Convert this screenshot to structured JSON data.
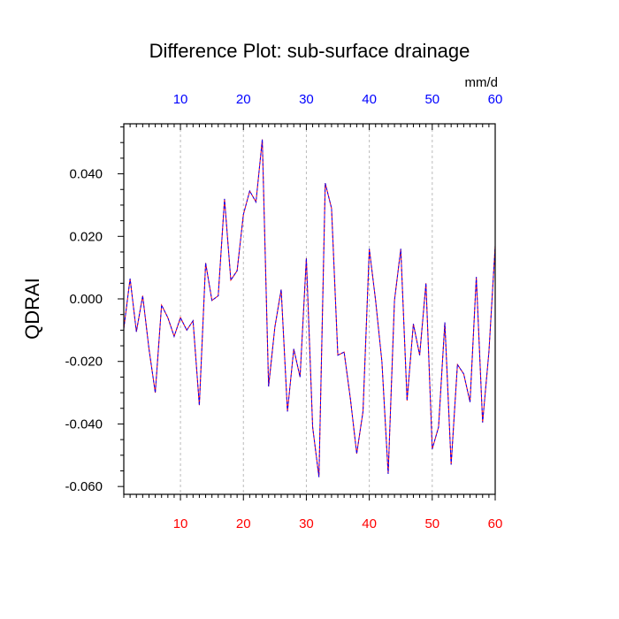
{
  "chart_data": {
    "type": "line",
    "title": "Difference Plot: sub-surface drainage",
    "ylabel": "QDRAI",
    "units": "mm/d",
    "xlim": [
      1,
      60
    ],
    "ylim": [
      -0.0625,
      0.056
    ],
    "x_ticks": [
      10,
      20,
      30,
      40,
      50,
      60
    ],
    "x_tick_labels": [
      "10",
      "20",
      "30",
      "40",
      "50",
      "60"
    ],
    "top_x_tick_labels": [
      "10",
      "20",
      "30",
      "40",
      "50",
      "60"
    ],
    "y_ticks": [
      -0.06,
      -0.04,
      -0.02,
      0.0,
      0.02,
      0.04
    ],
    "y_tick_labels": [
      "-0.060",
      "-0.040",
      "-0.020",
      "0.000",
      "0.020",
      "0.040"
    ],
    "grid": "vertical dashed at major x ticks",
    "colors": {
      "bottom_axis_labels": "#ff0000",
      "top_axis_labels": "#0000ff",
      "series_red": "#ff0000",
      "series_blue": "#0000ff"
    },
    "series": [
      {
        "color": "#ff0000",
        "values": [
          -0.0095,
          0.0065,
          -0.0105,
          0.001,
          -0.016,
          -0.03,
          -0.002,
          -0.006,
          -0.012,
          -0.006,
          -0.01,
          -0.007,
          -0.034,
          0.0115,
          -0.0005,
          0.001,
          0.032,
          0.006,
          0.009,
          0.027,
          0.0345,
          0.031,
          0.051,
          -0.028,
          -0.009,
          0.003,
          -0.036,
          -0.016,
          -0.025,
          0.013,
          -0.041,
          -0.057,
          0.037,
          0.029,
          -0.018,
          -0.017,
          -0.032,
          -0.0495,
          -0.036,
          0.016,
          -0.0005,
          -0.02,
          -0.056,
          -0.0005,
          0.016,
          -0.0325,
          -0.008,
          -0.018,
          0.005,
          -0.048,
          -0.041,
          -0.0075,
          -0.053,
          -0.021,
          -0.024,
          -0.033,
          0.007,
          -0.0395,
          -0.017,
          0.017
        ]
      },
      {
        "color": "#0000ff",
        "values": [
          -0.0095,
          0.0065,
          -0.0105,
          0.001,
          -0.016,
          -0.03,
          -0.002,
          -0.006,
          -0.012,
          -0.006,
          -0.01,
          -0.007,
          -0.034,
          0.0115,
          -0.0005,
          0.001,
          0.032,
          0.006,
          0.009,
          0.027,
          0.0345,
          0.031,
          0.051,
          -0.028,
          -0.009,
          0.003,
          -0.036,
          -0.016,
          -0.025,
          0.013,
          -0.041,
          -0.057,
          0.037,
          0.029,
          -0.018,
          -0.017,
          -0.032,
          -0.0495,
          -0.036,
          0.016,
          -0.0005,
          -0.02,
          -0.056,
          -0.0005,
          0.016,
          -0.0325,
          -0.008,
          -0.018,
          0.005,
          -0.048,
          -0.041,
          -0.0075,
          -0.053,
          -0.021,
          -0.024,
          -0.033,
          0.007,
          -0.0395,
          -0.017,
          0.017
        ]
      }
    ]
  }
}
